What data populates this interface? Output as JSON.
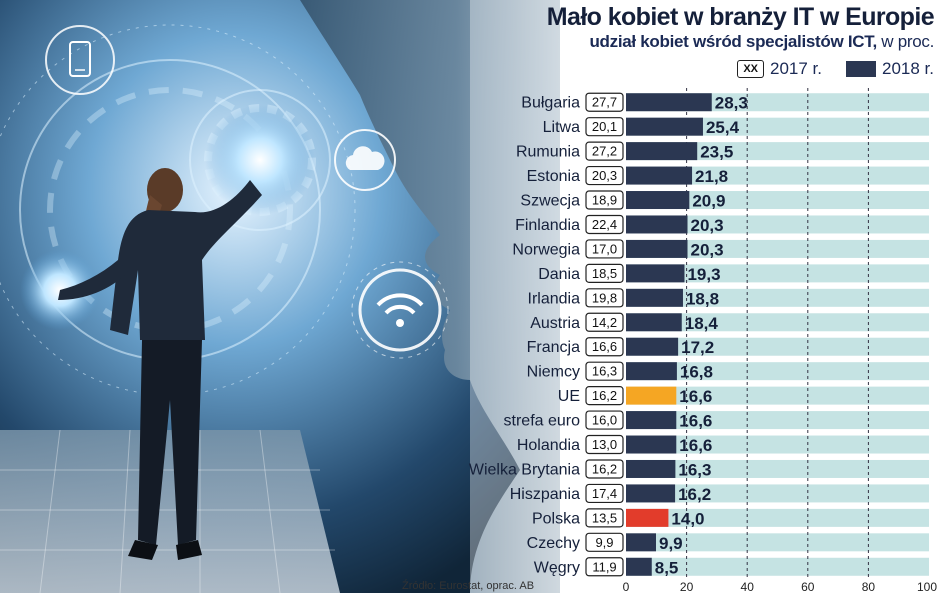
{
  "title": "Mało kobiet w branży IT w Europie",
  "subtitle_bold": "udział kobiet wśród specjalistów ICT,",
  "subtitle_rest": " w proc.",
  "legend": {
    "box_label": "XX",
    "series_2017": "2017 r.",
    "series_2018": "2018 r."
  },
  "source": "Źródło: Eurostat, oprac. AB",
  "colors": {
    "bar_default": "#2b3752",
    "bar_eu": "#f5a623",
    "bar_poland": "#e23c2b",
    "track": "#c5e3e3"
  },
  "illustration": {
    "icons": [
      "smartphone-icon",
      "cloud-icon",
      "wifi-icon"
    ]
  },
  "chart_data": {
    "type": "bar",
    "orientation": "horizontal",
    "categories": [
      "Bułgaria",
      "Litwa",
      "Rumunia",
      "Estonia",
      "Szwecja",
      "Finlandia",
      "Norwegia",
      "Dania",
      "Irlandia",
      "Austria",
      "Francja",
      "Niemcy",
      "UE",
      "strefa euro",
      "Holandia",
      "Wielka Brytania",
      "Hiszpania",
      "Polska",
      "Czechy",
      "Węgry"
    ],
    "series": [
      {
        "name": "2017 r.",
        "values": [
          "27,7",
          "20,1",
          "27,2",
          "20,3",
          "18,9",
          "22,4",
          "17,0",
          "18,5",
          "19,8",
          "14,2",
          "16,6",
          "16,3",
          "16,2",
          "16,0",
          "13,0",
          "16,2",
          "17,4",
          "13,5",
          "9,9",
          "11,9"
        ]
      },
      {
        "name": "2018 r.",
        "values": [
          28.3,
          25.4,
          23.5,
          21.8,
          20.9,
          20.3,
          20.3,
          19.3,
          18.8,
          18.4,
          17.2,
          16.8,
          16.6,
          16.6,
          16.6,
          16.3,
          16.2,
          14.0,
          9.9,
          8.5
        ]
      }
    ],
    "value_labels_2018": [
      "28,3",
      "25,4",
      "23,5",
      "21,8",
      "20,9",
      "20,3",
      "20,3",
      "19,3",
      "18,8",
      "18,4",
      "17,2",
      "16,8",
      "16,6",
      "16,6",
      "16,6",
      "16,3",
      "16,2",
      "14,0",
      "9,9",
      "8,5"
    ],
    "highlight": {
      "UE": "bar_eu",
      "Polska": "bar_poland"
    },
    "xlim": [
      0,
      100
    ],
    "xticks": [
      0,
      20,
      40,
      60,
      80,
      100
    ],
    "grid": "dashed-vertical"
  }
}
